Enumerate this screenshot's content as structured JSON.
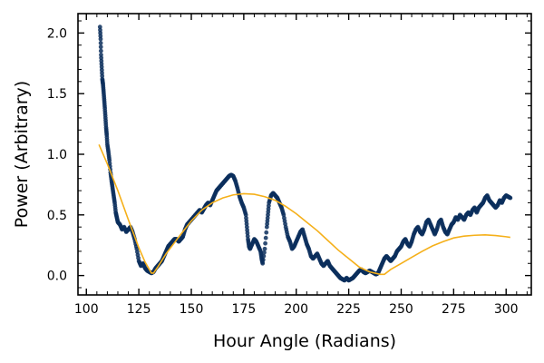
{
  "chart_data": {
    "type": "scatter",
    "title": "",
    "xlabel": "Hour Angle (Radians)",
    "ylabel": "Power (Arbitrary)",
    "xlim": [
      96,
      312
    ],
    "ylim": [
      -0.16,
      2.16
    ],
    "x_ticks": [
      100,
      125,
      150,
      175,
      200,
      225,
      250,
      275,
      300
    ],
    "y_ticks": [
      0.0,
      0.5,
      1.0,
      1.5,
      2.0
    ],
    "y_tick_labels": [
      "0.0",
      "0.5",
      "1.0",
      "1.5",
      "2.0"
    ],
    "grid": false,
    "legend": "none",
    "colors": {
      "data": "#0b2e5c",
      "fit": "#f5b01a"
    },
    "series": [
      {
        "kind": "scatter",
        "points": [
          [
            106.5,
            2.05
          ],
          [
            106.8,
            1.95
          ],
          [
            107.0,
            1.82
          ],
          [
            107.3,
            1.72
          ],
          [
            107.6,
            1.62
          ],
          [
            107.9,
            1.58
          ],
          [
            108.2,
            1.52
          ],
          [
            108.5,
            1.45
          ],
          [
            108.8,
            1.38
          ],
          [
            109.1,
            1.3
          ],
          [
            109.4,
            1.22
          ],
          [
            109.7,
            1.16
          ],
          [
            110.0,
            1.08
          ],
          [
            110.5,
            1.02
          ],
          [
            111.0,
            0.95
          ],
          [
            111.5,
            0.85
          ],
          [
            112.0,
            0.78
          ],
          [
            112.5,
            0.72
          ],
          [
            113.0,
            0.66
          ],
          [
            113.5,
            0.6
          ],
          [
            114.0,
            0.52
          ],
          [
            114.5,
            0.48
          ],
          [
            115.0,
            0.44
          ],
          [
            116.0,
            0.42
          ],
          [
            117.0,
            0.38
          ],
          [
            118.0,
            0.4
          ],
          [
            119.0,
            0.36
          ],
          [
            120.0,
            0.38
          ],
          [
            121.0,
            0.4
          ],
          [
            122.0,
            0.36
          ],
          [
            123.0,
            0.3
          ],
          [
            124.0,
            0.22
          ],
          [
            125.0,
            0.12
          ],
          [
            126.0,
            0.08
          ],
          [
            127.0,
            0.1
          ],
          [
            128.0,
            0.06
          ],
          [
            129.0,
            0.04
          ],
          [
            130.0,
            0.03
          ],
          [
            131.0,
            0.02
          ],
          [
            132.0,
            0.03
          ],
          [
            133.0,
            0.06
          ],
          [
            134.0,
            0.08
          ],
          [
            135.0,
            0.1
          ],
          [
            136.0,
            0.12
          ],
          [
            137.0,
            0.16
          ],
          [
            138.0,
            0.2
          ],
          [
            139.0,
            0.24
          ],
          [
            140.0,
            0.26
          ],
          [
            141.0,
            0.28
          ],
          [
            142.0,
            0.3
          ],
          [
            143.0,
            0.3
          ],
          [
            144.0,
            0.28
          ],
          [
            145.0,
            0.3
          ],
          [
            146.0,
            0.32
          ],
          [
            147.0,
            0.38
          ],
          [
            148.0,
            0.42
          ],
          [
            149.0,
            0.44
          ],
          [
            150.0,
            0.46
          ],
          [
            151.0,
            0.48
          ],
          [
            152.0,
            0.5
          ],
          [
            153.0,
            0.52
          ],
          [
            154.0,
            0.54
          ],
          [
            155.0,
            0.52
          ],
          [
            156.0,
            0.55
          ],
          [
            157.0,
            0.58
          ],
          [
            158.0,
            0.6
          ],
          [
            159.0,
            0.58
          ],
          [
            160.0,
            0.62
          ],
          [
            161.0,
            0.66
          ],
          [
            162.0,
            0.7
          ],
          [
            163.0,
            0.72
          ],
          [
            164.0,
            0.74
          ],
          [
            165.0,
            0.76
          ],
          [
            166.0,
            0.78
          ],
          [
            167.0,
            0.8
          ],
          [
            168.0,
            0.82
          ],
          [
            169.0,
            0.83
          ],
          [
            170.0,
            0.82
          ],
          [
            171.0,
            0.78
          ],
          [
            172.0,
            0.72
          ],
          [
            173.0,
            0.65
          ],
          [
            174.0,
            0.6
          ],
          [
            175.0,
            0.56
          ],
          [
            176.0,
            0.5
          ],
          [
            176.5,
            0.4
          ],
          [
            177.0,
            0.3
          ],
          [
            177.5,
            0.24
          ],
          [
            178.0,
            0.22
          ],
          [
            179.0,
            0.26
          ],
          [
            180.0,
            0.3
          ],
          [
            181.0,
            0.28
          ],
          [
            182.0,
            0.24
          ],
          [
            183.0,
            0.2
          ],
          [
            183.5,
            0.14
          ],
          [
            184.0,
            0.1
          ],
          [
            185.0,
            0.22
          ],
          [
            186.0,
            0.4
          ],
          [
            186.5,
            0.5
          ],
          [
            187.0,
            0.6
          ],
          [
            188.0,
            0.66
          ],
          [
            189.0,
            0.68
          ],
          [
            190.0,
            0.66
          ],
          [
            191.0,
            0.64
          ],
          [
            192.0,
            0.6
          ],
          [
            193.0,
            0.56
          ],
          [
            194.0,
            0.5
          ],
          [
            195.0,
            0.4
          ],
          [
            196.0,
            0.32
          ],
          [
            197.0,
            0.28
          ],
          [
            198.0,
            0.22
          ],
          [
            199.0,
            0.24
          ],
          [
            200.0,
            0.28
          ],
          [
            201.0,
            0.32
          ],
          [
            202.0,
            0.36
          ],
          [
            203.0,
            0.38
          ],
          [
            204.0,
            0.32
          ],
          [
            205.0,
            0.26
          ],
          [
            206.0,
            0.22
          ],
          [
            207.0,
            0.16
          ],
          [
            208.0,
            0.14
          ],
          [
            209.0,
            0.16
          ],
          [
            210.0,
            0.18
          ],
          [
            211.0,
            0.14
          ],
          [
            212.0,
            0.1
          ],
          [
            213.0,
            0.08
          ],
          [
            214.0,
            0.1
          ],
          [
            215.0,
            0.12
          ],
          [
            216.0,
            0.08
          ],
          [
            217.0,
            0.06
          ],
          [
            218.0,
            0.04
          ],
          [
            219.0,
            0.02
          ],
          [
            220.0,
            0.0
          ],
          [
            221.0,
            -0.02
          ],
          [
            222.0,
            -0.03
          ],
          [
            223.0,
            -0.04
          ],
          [
            224.0,
            -0.02
          ],
          [
            225.0,
            -0.04
          ],
          [
            226.0,
            -0.03
          ],
          [
            227.0,
            -0.02
          ],
          [
            228.0,
            0.0
          ],
          [
            229.0,
            0.02
          ],
          [
            230.0,
            0.04
          ],
          [
            231.0,
            0.05
          ],
          [
            232.0,
            0.03
          ],
          [
            233.0,
            0.02
          ],
          [
            234.0,
            0.03
          ],
          [
            235.0,
            0.04
          ],
          [
            236.0,
            0.03
          ],
          [
            237.0,
            0.02
          ],
          [
            238.0,
            0.01
          ],
          [
            239.0,
            0.02
          ],
          [
            240.0,
            0.06
          ],
          [
            241.0,
            0.1
          ],
          [
            242.0,
            0.14
          ],
          [
            243.0,
            0.16
          ],
          [
            244.0,
            0.14
          ],
          [
            245.0,
            0.12
          ],
          [
            246.0,
            0.14
          ],
          [
            247.0,
            0.16
          ],
          [
            248.0,
            0.2
          ],
          [
            249.0,
            0.22
          ],
          [
            250.0,
            0.24
          ],
          [
            251.0,
            0.28
          ],
          [
            252.0,
            0.3
          ],
          [
            253.0,
            0.26
          ],
          [
            254.0,
            0.24
          ],
          [
            255.0,
            0.28
          ],
          [
            256.0,
            0.34
          ],
          [
            257.0,
            0.38
          ],
          [
            258.0,
            0.4
          ],
          [
            259.0,
            0.36
          ],
          [
            260.0,
            0.34
          ],
          [
            261.0,
            0.38
          ],
          [
            262.0,
            0.44
          ],
          [
            263.0,
            0.46
          ],
          [
            264.0,
            0.42
          ],
          [
            265.0,
            0.38
          ],
          [
            266.0,
            0.34
          ],
          [
            267.0,
            0.38
          ],
          [
            268.0,
            0.44
          ],
          [
            269.0,
            0.46
          ],
          [
            270.0,
            0.4
          ],
          [
            271.0,
            0.36
          ],
          [
            272.0,
            0.34
          ],
          [
            273.0,
            0.38
          ],
          [
            274.0,
            0.42
          ],
          [
            275.0,
            0.44
          ],
          [
            276.0,
            0.48
          ],
          [
            277.0,
            0.46
          ],
          [
            278.0,
            0.5
          ],
          [
            279.0,
            0.48
          ],
          [
            280.0,
            0.46
          ],
          [
            281.0,
            0.5
          ],
          [
            282.0,
            0.52
          ],
          [
            283.0,
            0.5
          ],
          [
            284.0,
            0.54
          ],
          [
            285.0,
            0.56
          ],
          [
            286.0,
            0.52
          ],
          [
            287.0,
            0.56
          ],
          [
            288.0,
            0.58
          ],
          [
            289.0,
            0.6
          ],
          [
            290.0,
            0.64
          ],
          [
            291.0,
            0.66
          ],
          [
            292.0,
            0.62
          ],
          [
            293.0,
            0.6
          ],
          [
            294.0,
            0.58
          ],
          [
            295.0,
            0.56
          ],
          [
            296.0,
            0.58
          ],
          [
            297.0,
            0.62
          ],
          [
            298.0,
            0.6
          ],
          [
            299.0,
            0.64
          ],
          [
            300.0,
            0.66
          ],
          [
            301.0,
            0.65
          ],
          [
            302.0,
            0.64
          ]
        ]
      },
      {
        "kind": "line",
        "points": [
          [
            106,
            1.08
          ],
          [
            110,
            0.92
          ],
          [
            115,
            0.7
          ],
          [
            120,
            0.46
          ],
          [
            125,
            0.23
          ],
          [
            128,
            0.11
          ],
          [
            131,
            0.02
          ],
          [
            132,
            0.02
          ],
          [
            134,
            0.07
          ],
          [
            138,
            0.18
          ],
          [
            145,
            0.34
          ],
          [
            150,
            0.45
          ],
          [
            155,
            0.54
          ],
          [
            160,
            0.6
          ],
          [
            165,
            0.64
          ],
          [
            170,
            0.665
          ],
          [
            175,
            0.675
          ],
          [
            180,
            0.67
          ],
          [
            185,
            0.65
          ],
          [
            190,
            0.62
          ],
          [
            195,
            0.57
          ],
          [
            200,
            0.51
          ],
          [
            205,
            0.44
          ],
          [
            210,
            0.37
          ],
          [
            215,
            0.29
          ],
          [
            220,
            0.21
          ],
          [
            225,
            0.14
          ],
          [
            230,
            0.07
          ],
          [
            235,
            0.03
          ],
          [
            240,
            0.01
          ],
          [
            242,
            0.01
          ],
          [
            245,
            0.05
          ],
          [
            250,
            0.1
          ],
          [
            255,
            0.15
          ],
          [
            260,
            0.2
          ],
          [
            265,
            0.245
          ],
          [
            270,
            0.28
          ],
          [
            275,
            0.31
          ],
          [
            280,
            0.325
          ],
          [
            285,
            0.332
          ],
          [
            290,
            0.335
          ],
          [
            295,
            0.33
          ],
          [
            300,
            0.32
          ],
          [
            302,
            0.315
          ]
        ]
      }
    ]
  }
}
